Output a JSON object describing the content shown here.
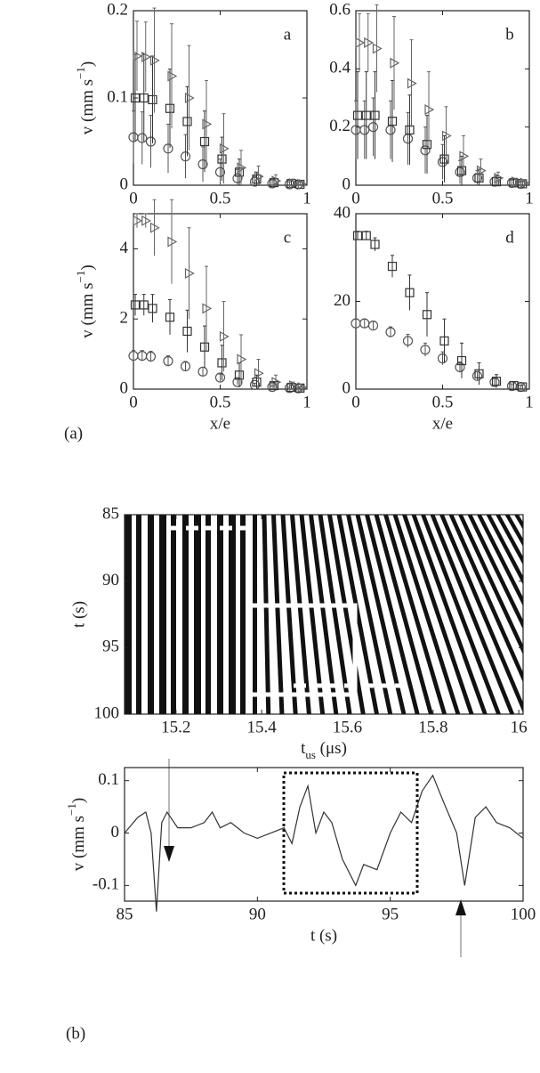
{
  "figure_labels": [
    "(a)",
    "(b)"
  ],
  "chart_data": [
    {
      "type": "scatter",
      "annotation": "a",
      "ylabel": {
        "text": "v (mm s",
        "sup": "−1",
        "tail": ")"
      },
      "xlim": [
        0,
        1
      ],
      "xticks": [
        0,
        0.5,
        1
      ],
      "ylim": [
        0,
        0.2
      ],
      "yticks": [
        0,
        0.1,
        0.2
      ],
      "grid": false,
      "x": [
        0,
        0.05,
        0.1,
        0.2,
        0.3,
        0.4,
        0.5,
        0.6,
        0.7,
        0.8,
        0.9,
        0.95
      ],
      "series": [
        {
          "marker": "circle",
          "color": "#555555",
          "values": [
            0.055,
            0.054,
            0.05,
            0.042,
            0.033,
            0.024,
            0.015,
            0.008,
            0.004,
            0.002,
            0.001,
            0.001
          ],
          "errors": [
            0.03,
            0.03,
            0.03,
            0.028,
            0.025,
            0.02,
            0.015,
            0.01,
            0.006,
            0.004,
            0.003,
            0.003
          ]
        },
        {
          "marker": "square",
          "color": "#333333",
          "values": [
            0.1,
            0.1,
            0.098,
            0.088,
            0.073,
            0.05,
            0.03,
            0.015,
            0.007,
            0.003,
            0.002,
            0.001
          ],
          "errors": [
            0.05,
            0.05,
            0.05,
            0.045,
            0.04,
            0.035,
            0.025,
            0.015,
            0.008,
            0.005,
            0.004,
            0.003
          ]
        },
        {
          "marker": "triangle",
          "color": "#666666",
          "values": [
            0.148,
            0.147,
            0.143,
            0.125,
            0.1,
            0.07,
            0.042,
            0.02,
            0.01,
            0.005,
            0.002,
            0.001
          ],
          "errors": [
            0.04,
            0.04,
            0.06,
            0.06,
            0.06,
            0.05,
            0.04,
            0.02,
            0.012,
            0.007,
            0.005,
            0.004
          ]
        }
      ]
    },
    {
      "type": "scatter",
      "annotation": "b",
      "xlim": [
        0,
        1
      ],
      "xticks": [
        0,
        0.5,
        1
      ],
      "ylim": [
        0,
        0.6
      ],
      "yticks": [
        0,
        0.2,
        0.4,
        0.6
      ],
      "grid": false,
      "x": [
        0,
        0.05,
        0.1,
        0.2,
        0.3,
        0.4,
        0.5,
        0.6,
        0.7,
        0.8,
        0.9,
        0.95
      ],
      "series": [
        {
          "marker": "circle",
          "color": "#555555",
          "values": [
            0.19,
            0.19,
            0.2,
            0.19,
            0.16,
            0.12,
            0.08,
            0.045,
            0.025,
            0.012,
            0.008,
            0.005
          ],
          "errors": [
            0.1,
            0.1,
            0.1,
            0.1,
            0.09,
            0.08,
            0.06,
            0.04,
            0.025,
            0.015,
            0.01,
            0.008
          ]
        },
        {
          "marker": "square",
          "color": "#333333",
          "values": [
            0.24,
            0.24,
            0.24,
            0.22,
            0.19,
            0.14,
            0.09,
            0.05,
            0.025,
            0.012,
            0.008,
            0.005
          ],
          "errors": [
            0.15,
            0.15,
            0.15,
            0.14,
            0.12,
            0.1,
            0.08,
            0.05,
            0.03,
            0.02,
            0.012,
            0.008
          ]
        },
        {
          "marker": "triangle",
          "color": "#666666",
          "values": [
            0.49,
            0.49,
            0.47,
            0.42,
            0.35,
            0.26,
            0.17,
            0.1,
            0.05,
            0.025,
            0.012,
            0.008
          ],
          "errors": [
            0.1,
            0.1,
            0.15,
            0.16,
            0.15,
            0.13,
            0.1,
            0.07,
            0.04,
            0.02,
            0.012,
            0.01
          ]
        }
      ]
    },
    {
      "type": "scatter",
      "annotation": "c",
      "ylabel": {
        "text": "v (mm s",
        "sup": "−1",
        "tail": ")"
      },
      "xlabel": "x/e",
      "xlim": [
        0,
        1
      ],
      "xticks": [
        0,
        0.5,
        1
      ],
      "ylim": [
        0,
        5
      ],
      "yticks": [
        0,
        2,
        4
      ],
      "grid": false,
      "x": [
        0,
        0.05,
        0.1,
        0.2,
        0.3,
        0.4,
        0.5,
        0.6,
        0.7,
        0.8,
        0.9,
        0.95
      ],
      "series": [
        {
          "marker": "circle",
          "color": "#555555",
          "values": [
            0.95,
            0.95,
            0.93,
            0.8,
            0.65,
            0.5,
            0.33,
            0.2,
            0.12,
            0.06,
            0.03,
            0.02
          ],
          "errors": [
            0.15,
            0.15,
            0.15,
            0.15,
            0.14,
            0.12,
            0.1,
            0.08,
            0.05,
            0.03,
            0.02,
            0.02
          ]
        },
        {
          "marker": "square",
          "color": "#333333",
          "values": [
            2.4,
            2.4,
            2.3,
            2.05,
            1.65,
            1.2,
            0.75,
            0.4,
            0.2,
            0.1,
            0.05,
            0.03
          ],
          "errors": [
            0.3,
            0.3,
            0.4,
            0.5,
            0.6,
            0.6,
            0.5,
            0.35,
            0.2,
            0.1,
            0.06,
            0.04
          ]
        },
        {
          "marker": "triangle",
          "color": "#666666",
          "values": [
            4.8,
            4.8,
            4.6,
            4.2,
            3.3,
            2.3,
            1.5,
            0.85,
            0.45,
            0.2,
            0.1,
            0.05
          ],
          "errors": [
            0.2,
            0.2,
            0.8,
            1.2,
            1.3,
            1.2,
            1.0,
            0.7,
            0.4,
            0.2,
            0.1,
            0.06
          ]
        }
      ]
    },
    {
      "type": "scatter",
      "annotation": "d",
      "xlabel": "x/e",
      "xlim": [
        0,
        1
      ],
      "xticks": [
        0,
        0.5,
        1
      ],
      "ylim": [
        0,
        40
      ],
      "yticks": [
        0,
        20,
        40
      ],
      "grid": false,
      "x": [
        0,
        0.05,
        0.1,
        0.2,
        0.3,
        0.4,
        0.5,
        0.6,
        0.7,
        0.8,
        0.9,
        0.95
      ],
      "series": [
        {
          "marker": "circle",
          "color": "#555555",
          "values": [
            15,
            15,
            14.5,
            13,
            11,
            9,
            7,
            5,
            3,
            1.6,
            0.7,
            0.5
          ],
          "errors": [
            1,
            1,
            1,
            1.2,
            1.5,
            1.5,
            1.5,
            1.2,
            1,
            0.8,
            0.5,
            0.4
          ]
        },
        {
          "marker": "square",
          "color": "#333333",
          "values": [
            35,
            35,
            33,
            28,
            22,
            17,
            11,
            6.5,
            3.5,
            1.8,
            0.8,
            0.5
          ],
          "errors": [
            1,
            1,
            1.5,
            2.5,
            4,
            5,
            5,
            4,
            2.5,
            1.5,
            0.8,
            0.5
          ]
        }
      ]
    },
    {
      "type": "image",
      "xlabel": {
        "text": "t",
        "sub": "us",
        "tail": " (μs)"
      },
      "ylabel": "t (s)",
      "xlim": [
        15.08,
        16.01
      ],
      "xticks": [
        15.2,
        15.4,
        15.6,
        15.8,
        16
      ],
      "ylim": [
        85,
        100
      ],
      "yticks": [
        85,
        90,
        95,
        100
      ],
      "y_reversed": true
    },
    {
      "type": "line",
      "xlabel": "t (s)",
      "ylabel": {
        "text": "v (mm s",
        "sup": "−1",
        "tail": ")"
      },
      "color": "#333333",
      "xlim": [
        85,
        100
      ],
      "xticks": [
        85,
        90,
        95,
        100
      ],
      "ylim": [
        -0.13,
        0.125
      ],
      "yticks": [
        -0.1,
        0,
        0.1
      ],
      "grid": false,
      "x": [
        85,
        85.5,
        85.8,
        86,
        86.2,
        86.4,
        86.6,
        87,
        87.5,
        88,
        88.3,
        88.6,
        89,
        89.5,
        90,
        90.5,
        91,
        91.3,
        91.6,
        91.9,
        92.2,
        92.5,
        92.8,
        93.2,
        93.7,
        94,
        94.5,
        95,
        95.4,
        95.8,
        96.2,
        96.6,
        97,
        97.5,
        97.8,
        98.2,
        98.6,
        99,
        99.5,
        100
      ],
      "values": [
        0,
        0.03,
        0.04,
        0,
        -0.15,
        0.02,
        0.04,
        0.01,
        0.01,
        0.02,
        0.04,
        0.01,
        0.02,
        0,
        -0.01,
        0,
        0.01,
        -0.02,
        0.05,
        0.09,
        0,
        0.04,
        0.02,
        -0.05,
        -0.1,
        -0.06,
        -0.07,
        0,
        0.04,
        0.02,
        0.08,
        0.11,
        0.06,
        0,
        -0.1,
        0.03,
        0.05,
        0.02,
        0.01,
        -0.01
      ]
    }
  ]
}
